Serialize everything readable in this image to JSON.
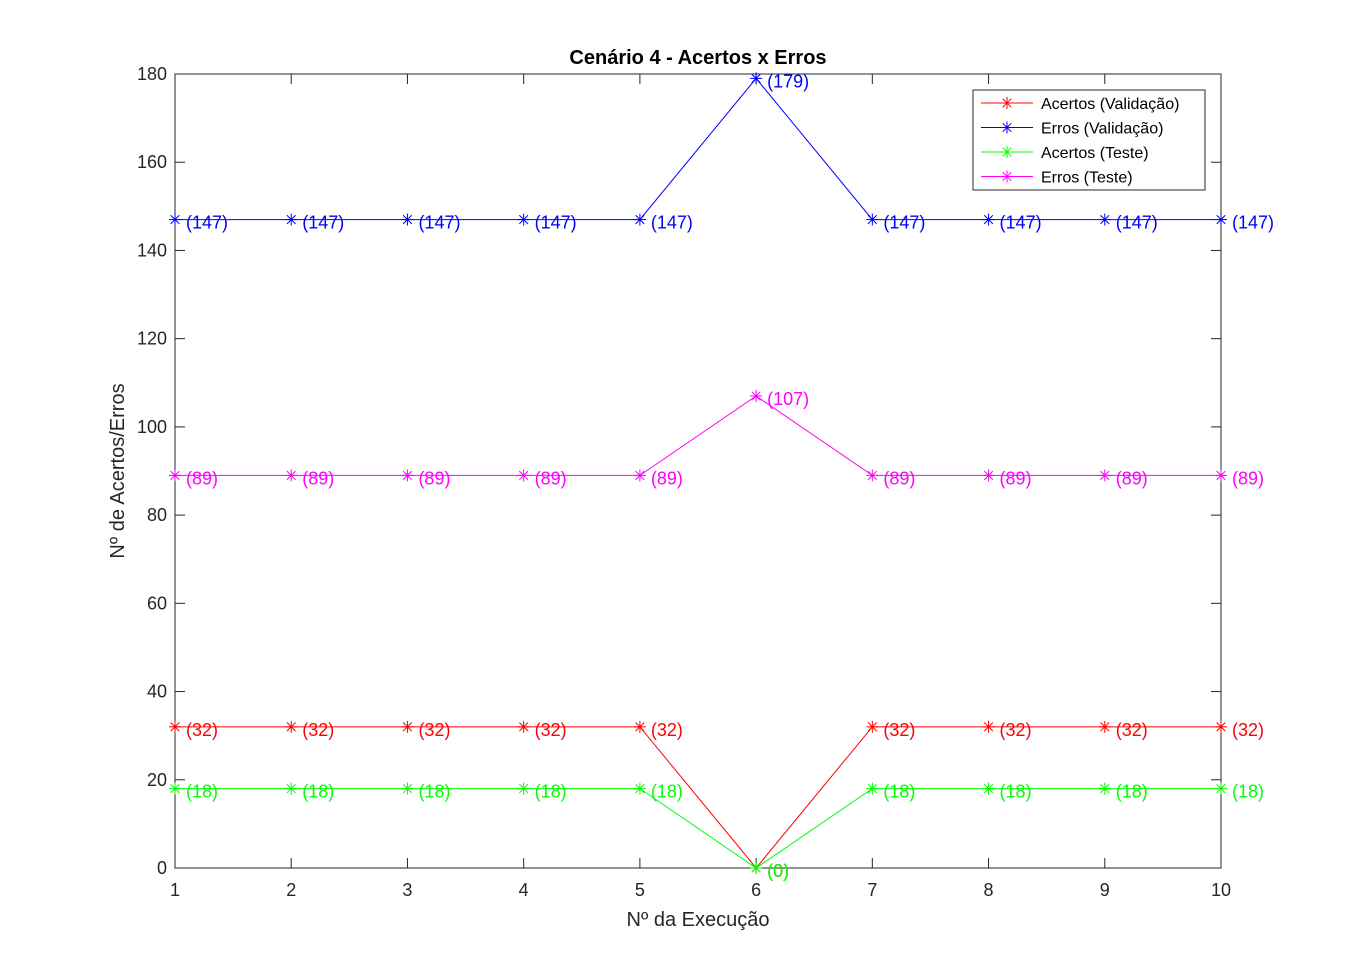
{
  "chart_data": {
    "type": "line",
    "title": "Cenário 4 - Acertos x Erros",
    "xlabel": "Nº da Execução",
    "ylabel": "Nº de Acertos/Erros",
    "xlim": [
      1,
      10
    ],
    "ylim": [
      0,
      180
    ],
    "xticks": [
      1,
      2,
      3,
      4,
      5,
      6,
      7,
      8,
      9,
      10
    ],
    "yticks": [
      0,
      20,
      40,
      60,
      80,
      100,
      120,
      140,
      160,
      180
    ],
    "grid": false,
    "legend_position": "top-right",
    "marker": "asterisk",
    "x": [
      1,
      2,
      3,
      4,
      5,
      6,
      7,
      8,
      9,
      10
    ],
    "series": [
      {
        "name": "Acertos (Validação)",
        "color": "#ff0000",
        "values": [
          32,
          32,
          32,
          32,
          32,
          0,
          32,
          32,
          32,
          32
        ],
        "labels": [
          "(32)",
          "(32)",
          "(32)",
          "(32)",
          "(32)",
          "(0)",
          "(32)",
          "(32)",
          "(32)",
          "(32)"
        ]
      },
      {
        "name": "Erros (Validação)",
        "color": "#0000ff",
        "values": [
          147,
          147,
          147,
          147,
          147,
          179,
          147,
          147,
          147,
          147
        ],
        "labels": [
          "(147)",
          "(147)",
          "(147)",
          "(147)",
          "(147)",
          "(179)",
          "(147)",
          "(147)",
          "(147)",
          "(147)"
        ]
      },
      {
        "name": "Acertos (Teste)",
        "color": "#00ff00",
        "values": [
          18,
          18,
          18,
          18,
          18,
          0,
          18,
          18,
          18,
          18
        ],
        "labels": [
          "(18)",
          "(18)",
          "(18)",
          "(18)",
          "(18)",
          "(0)",
          "(18)",
          "(18)",
          "(18)",
          "(18)"
        ]
      },
      {
        "name": "Erros (Teste)",
        "color": "#ff00ff",
        "values": [
          89,
          89,
          89,
          89,
          89,
          107,
          89,
          89,
          89,
          89
        ],
        "labels": [
          "(89)",
          "(89)",
          "(89)",
          "(89)",
          "(89)",
          "(107)",
          "(89)",
          "(89)",
          "(89)",
          "(89)"
        ]
      }
    ]
  }
}
